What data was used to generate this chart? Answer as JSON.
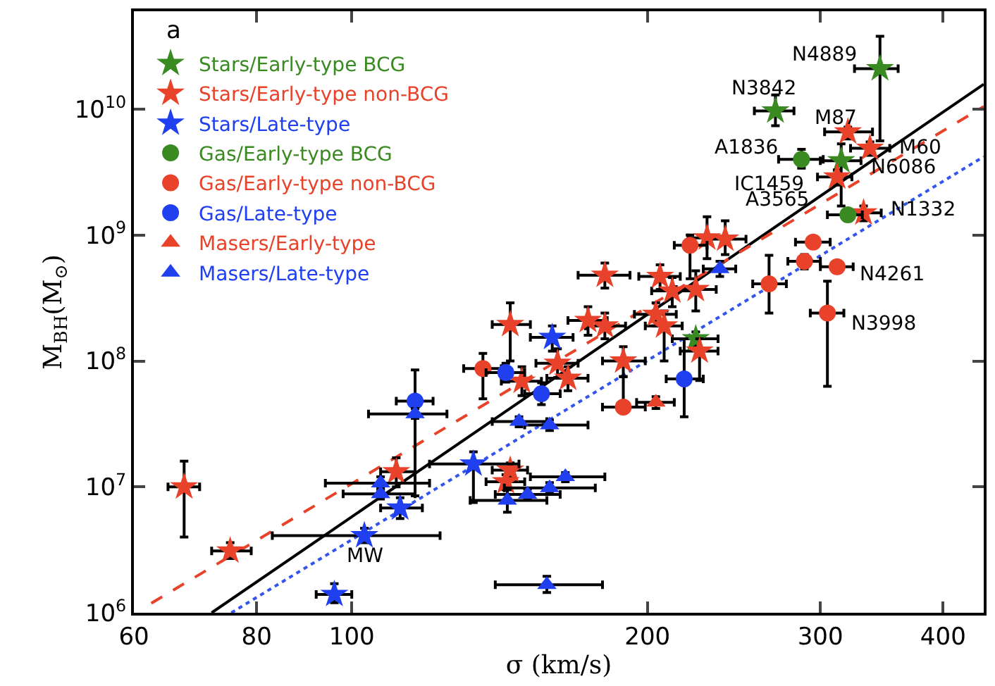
{
  "chart_data": {
    "type": "scatter",
    "xlabel": "σ (km/s)",
    "ylabel": "M$_{BH}$(M$_{⊙}$)",
    "log": "xy",
    "grid": false,
    "legend": "top left",
    "xlim": [
      60,
      440
    ],
    "xticks": [
      60,
      80,
      100,
      200,
      300,
      400
    ],
    "ylim": [
      1000000,
      60000000000
    ],
    "yticks": [
      {
        "value": 1000000,
        "label": "10$^{6}$"
      },
      {
        "value": 10000000,
        "label": "10$^{7}$"
      },
      {
        "value": 100000000,
        "label": "10$^{8}$"
      },
      {
        "value": 1000000000,
        "label": "10$^{9}$"
      },
      {
        "value": 10000000000,
        "label": "10$^{10}$"
      }
    ],
    "series": [
      {
        "name": "Stars/Early-type BCG",
        "color": "#3a8a22",
        "marker": "star",
        "x": [
          345,
          270,
          315,
          224
        ],
        "values": [
          21000000000,
          9700000000,
          3900000000,
          150000000
        ],
        "errors": [
          [
            5600000000,
            38000000000
          ],
          [
            7400000000,
            13000000000
          ],
          [
            1700000000,
            5300000000
          ],
          [
            130000000,
            170000000
          ]
        ],
        "xerrors": [
          [
            325,
            360
          ],
          [
            257,
            282
          ],
          [
            300,
            330
          ],
          [
            212,
            236
          ]
        ]
      },
      {
        "name": "Stars/Early-type non-BCG",
        "color": "#e8432a",
        "marker": "star",
        "x": [
          320,
          337,
          312,
          332,
          230,
          240,
          181,
          206,
          212,
          224,
          174,
          181,
          204,
          208,
          145,
          162,
          149,
          166,
          189,
          226,
          67.5,
          75.2,
          111,
          145,
          143.5
        ],
        "values": [
          6600000000,
          4900000000,
          2900000000,
          1500000000,
          950000000,
          930000000,
          480000000,
          470000000,
          360000000,
          370000000,
          210000000,
          190000000,
          235000000,
          190000000,
          195000000,
          96000000,
          69000000,
          73000000,
          100000000,
          120000000,
          10000000,
          3100000,
          13200000,
          13600000,
          11000000
        ],
        "errors": [
          [
            5800000000,
            7200000000
          ],
          [
            4300000000,
            5500000000
          ],
          [
            2500000000,
            3300000000
          ],
          [
            1300000000,
            1700000000
          ],
          [
            650000000,
            1400000000
          ],
          [
            700000000,
            1300000000
          ],
          [
            380000000,
            600000000
          ],
          [
            370000000,
            580000000
          ],
          [
            270000000,
            460000000
          ],
          [
            250000000,
            520000000
          ],
          [
            160000000,
            270000000
          ],
          [
            150000000,
            240000000
          ],
          [
            190000000,
            290000000
          ],
          [
            100000000,
            250000000
          ],
          [
            100000000,
            290000000
          ],
          [
            74000000,
            125000000
          ],
          [
            53000000,
            90000000
          ],
          [
            58000000,
            90000000
          ],
          [
            75000000,
            130000000
          ],
          [
            70000000,
            150000000
          ],
          [
            4000000,
            16000000
          ],
          [
            2700000,
            3600000
          ],
          [
            10000000,
            17000000
          ],
          [
            12000000,
            15500000
          ],
          [
            9500000,
            12500000
          ]
        ],
        "xerrors": [
          [
            303,
            339
          ],
          [
            322,
            353
          ],
          [
            298,
            323
          ],
          [
            318,
            346
          ],
          [
            220,
            240
          ],
          [
            230,
            252
          ],
          [
            170,
            192
          ],
          [
            196,
            216
          ],
          [
            202,
            222
          ],
          [
            214,
            235
          ],
          [
            166,
            182
          ],
          [
            173,
            190
          ],
          [
            194,
            214
          ],
          [
            199,
            217
          ],
          [
            139,
            152
          ],
          [
            154,
            170
          ],
          [
            142,
            156
          ],
          [
            158,
            174
          ],
          [
            180,
            199
          ],
          [
            216,
            236
          ],
          [
            65,
            70
          ],
          [
            72,
            79
          ],
          [
            107,
            116
          ],
          [
            139,
            151
          ],
          [
            137,
            150
          ]
        ]
      },
      {
        "name": "Stars/Late-type",
        "color": "#2040f0",
        "marker": "star",
        "x": [
          160,
          96,
          103,
          112,
          133
        ],
        "values": [
          154000000,
          1400000,
          4100000,
          6800000,
          15200000
        ],
        "errors": [
          [
            120000000,
            190000000
          ],
          [
            1200000,
            1700000
          ],
          [
            3600000,
            4700000
          ],
          [
            5600000,
            8200000
          ],
          [
            7500000,
            19000000
          ]
        ],
        "xerrors": [
          [
            152,
            168
          ],
          [
            92,
            100
          ],
          [
            83,
            123
          ],
          [
            107,
            118
          ],
          [
            120,
            148
          ]
        ]
      },
      {
        "name": "Gas/Early-type BCG",
        "color": "#3a8a22",
        "marker": "circle",
        "x": [
          287,
          320
        ],
        "values": [
          4000000000,
          1450000000
        ],
        "errors": [
          [
            3400000000,
            4800000000
          ],
          [
            1300000000,
            1600000000
          ]
        ],
        "xerrors": [
          [
            272,
            302
          ],
          [
            305,
            331
          ]
        ]
      },
      {
        "name": "Gas/Early-type non-BCG",
        "color": "#e8432a",
        "marker": "circle",
        "x": [
          221,
          295,
          289,
          312,
          266,
          305,
          136,
          189
        ],
        "values": [
          830000000,
          880000000,
          620000000,
          560000000,
          410000000,
          240000000,
          87000000,
          43000000
        ],
        "errors": [
          [
            450000000,
            1000000000
          ],
          null,
          [
            540000000,
            700000000
          ],
          null,
          [
            240000000,
            690000000
          ],
          [
            63000000,
            430000000
          ],
          [
            50000000,
            115000000
          ],
          [
            39000000,
            75000000
          ]
        ],
        "xerrors": [
          [
            213,
            230
          ],
          [
            283,
            307
          ],
          [
            278,
            300
          ],
          [
            300,
            324
          ],
          [
            256,
            277
          ],
          [
            293,
            317
          ],
          [
            130,
            142
          ],
          [
            180,
            199
          ]
        ]
      },
      {
        "name": "Gas/Late-type",
        "color": "#2040f0",
        "marker": "circle",
        "x": [
          143.5,
          156,
          116,
          218
        ],
        "values": [
          81000000,
          55000000,
          48000000,
          72000000
        ],
        "errors": [
          [
            68000000,
            96000000
          ],
          [
            45000000,
            67000000
          ],
          [
            35000000,
            85000000
          ],
          [
            36000000,
            150000000
          ]
        ],
        "xerrors": [
          [
            137,
            150
          ],
          [
            150,
            163
          ],
          [
            111,
            121
          ],
          [
            209,
            228
          ]
        ]
      },
      {
        "name": "Masers/Early-type",
        "color": "#e8432a",
        "marker": "triangle",
        "x": [
          204
        ],
        "values": [
          47000000
        ],
        "errors": [
          [
            42000000,
            52000000
          ]
        ],
        "xerrors": [
          [
            195,
            213
          ]
        ]
      },
      {
        "name": "Masers/Late-type",
        "color": "#2040f0",
        "marker": "triangle",
        "x": [
          237,
          116,
          148,
          159,
          107,
          107,
          144,
          151,
          159,
          165,
          158
        ],
        "values": [
          540000000,
          38000000,
          33000000,
          31000000,
          10700000,
          8800000,
          7800000,
          8700000,
          9800000,
          12000000,
          1670000
        ],
        "errors": [
          [
            470000000,
            620000000
          ],
          [
            8500000,
            42000000
          ],
          [
            30000000,
            36000000
          ],
          [
            28000000,
            34000000
          ],
          [
            9500000,
            12000000
          ],
          [
            8000000,
            9700000
          ],
          [
            6300000,
            9500000
          ],
          [
            7900000,
            9600000
          ],
          [
            8900000,
            10800000
          ],
          [
            11000000,
            13000000
          ],
          [
            1450000,
            1950000
          ]
        ],
        "xerrors": [
          [
            228,
            246
          ],
          [
            104,
            125
          ],
          [
            139,
            158
          ],
          [
            150,
            174
          ],
          [
            94,
            120
          ],
          [
            98,
            116
          ],
          [
            132,
            158
          ],
          [
            140,
            163
          ],
          [
            143,
            177
          ],
          [
            152,
            181
          ],
          [
            140,
            180
          ]
        ]
      },
      {
        "type": "line",
        "color": "#000000",
        "line_style": "solid",
        "x": [
          72,
          440
        ],
        "values": [
          1000000,
          15800000000
        ]
      },
      {
        "type": "line",
        "color": "#e8432a",
        "line_style": "dashed",
        "x": [
          62.5,
          440
        ],
        "values": [
          1190000,
          10500000000
        ]
      },
      {
        "type": "line",
        "color": "#3355ee",
        "line_style": "dotted",
        "x": [
          75.4,
          440
        ],
        "values": [
          1000000,
          4200000000
        ]
      }
    ],
    "annotations": [
      "a",
      {
        "text": "N4889",
        "x": 345,
        "y": 21000000000
      },
      {
        "text": "N3842",
        "x": 270,
        "y": 9700000000
      },
      {
        "text": "M87",
        "x": 320,
        "y": 6600000000
      },
      {
        "text": "M60",
        "x": 337,
        "y": 4900000000
      },
      {
        "text": "A1836",
        "x": 287,
        "y": 4000000000
      },
      {
        "text": "N6086",
        "x": 315,
        "y": 3900000000
      },
      {
        "text": "IC1459",
        "x": 312,
        "y": 2900000000
      },
      {
        "text": "A3565",
        "x": 320,
        "y": 1450000000
      },
      {
        "text": "N1332",
        "x": 332,
        "y": 1500000000
      },
      {
        "text": "N4261",
        "x": 312,
        "y": 560000000
      },
      {
        "text": "N3998",
        "x": 305,
        "y": 240000000
      },
      {
        "text": "MW",
        "x": 103,
        "y": 4100000
      }
    ]
  }
}
